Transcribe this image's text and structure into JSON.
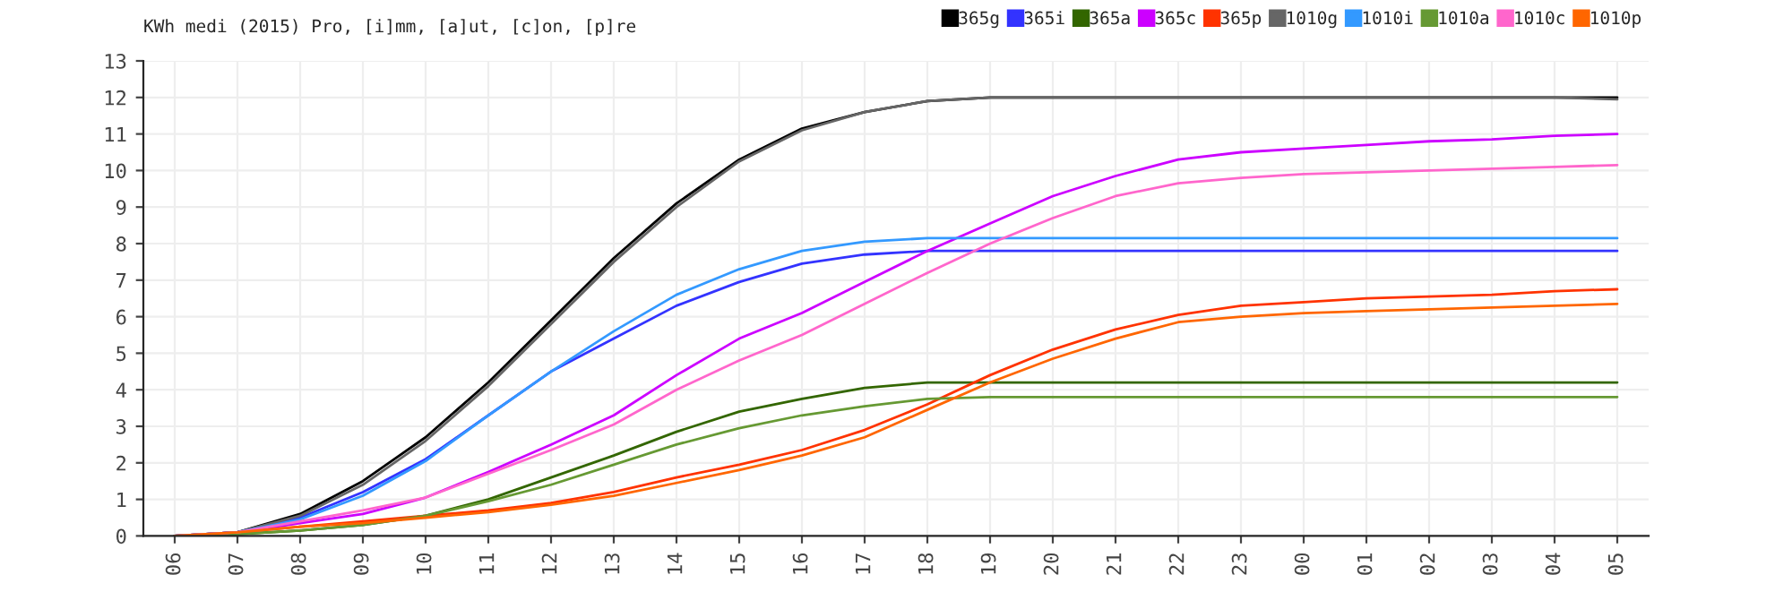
{
  "chart_data": {
    "type": "line",
    "title": "KWh medi (2015) Pro, [i]mm, [a]ut, [c]on, [p]re",
    "categories": [
      "06",
      "07",
      "08",
      "09",
      "10",
      "11",
      "12",
      "13",
      "14",
      "15",
      "16",
      "17",
      "18",
      "19",
      "20",
      "21",
      "22",
      "23",
      "00",
      "01",
      "02",
      "03",
      "04",
      "05"
    ],
    "series": [
      {
        "name": "365g",
        "color": "#000000",
        "values": [
          0,
          0.1,
          0.6,
          1.5,
          2.7,
          4.2,
          5.9,
          7.6,
          9.1,
          10.3,
          11.15,
          11.6,
          11.9,
          12.0,
          12.0,
          12.0,
          12.0,
          12.0,
          12.0,
          12.0,
          12.0,
          12.0,
          12.0,
          12.0
        ]
      },
      {
        "name": "365i",
        "color": "#3333ff",
        "values": [
          0,
          0.1,
          0.5,
          1.2,
          2.1,
          3.3,
          4.5,
          5.4,
          6.3,
          6.95,
          7.45,
          7.7,
          7.8,
          7.8,
          7.8,
          7.8,
          7.8,
          7.8,
          7.8,
          7.8,
          7.8,
          7.8,
          7.8,
          7.8
        ]
      },
      {
        "name": "365a",
        "color": "#336600",
        "values": [
          0,
          0.05,
          0.15,
          0.3,
          0.55,
          1.0,
          1.6,
          2.2,
          2.85,
          3.4,
          3.75,
          4.05,
          4.2,
          4.2,
          4.2,
          4.2,
          4.2,
          4.2,
          4.2,
          4.2,
          4.2,
          4.2,
          4.2,
          4.2
        ]
      },
      {
        "name": "365c",
        "color": "#cc00ff",
        "values": [
          0,
          0.1,
          0.35,
          0.6,
          1.05,
          1.75,
          2.5,
          3.3,
          4.4,
          5.4,
          6.1,
          6.95,
          7.8,
          8.55,
          9.3,
          9.85,
          10.3,
          10.5,
          10.6,
          10.7,
          10.8,
          10.85,
          10.95,
          11.0
        ]
      },
      {
        "name": "365p",
        "color": "#ff3300",
        "values": [
          0,
          0.1,
          0.25,
          0.4,
          0.55,
          0.7,
          0.9,
          1.2,
          1.6,
          1.95,
          2.35,
          2.9,
          3.6,
          4.4,
          5.1,
          5.65,
          6.05,
          6.3,
          6.4,
          6.5,
          6.55,
          6.6,
          6.7,
          6.75
        ]
      },
      {
        "name": "1010g",
        "color": "#666666",
        "values": [
          0,
          0.1,
          0.55,
          1.4,
          2.6,
          4.1,
          5.8,
          7.5,
          9.0,
          10.25,
          11.1,
          11.6,
          11.9,
          12.0,
          12.0,
          12.0,
          12.0,
          12.0,
          12.0,
          12.0,
          12.0,
          12.0,
          12.0,
          11.95
        ]
      },
      {
        "name": "1010i",
        "color": "#3399ff",
        "values": [
          0,
          0.1,
          0.45,
          1.1,
          2.05,
          3.3,
          4.5,
          5.6,
          6.6,
          7.3,
          7.8,
          8.05,
          8.15,
          8.15,
          8.15,
          8.15,
          8.15,
          8.15,
          8.15,
          8.15,
          8.15,
          8.15,
          8.15,
          8.15
        ]
      },
      {
        "name": "1010a",
        "color": "#669933",
        "values": [
          0,
          0.05,
          0.15,
          0.3,
          0.55,
          0.95,
          1.4,
          1.95,
          2.5,
          2.95,
          3.3,
          3.55,
          3.75,
          3.8,
          3.8,
          3.8,
          3.8,
          3.8,
          3.8,
          3.8,
          3.8,
          3.8,
          3.8,
          3.8
        ]
      },
      {
        "name": "1010c",
        "color": "#ff66cc",
        "values": [
          0,
          0.1,
          0.4,
          0.7,
          1.05,
          1.7,
          2.35,
          3.05,
          4.0,
          4.8,
          5.5,
          6.35,
          7.2,
          8.0,
          8.7,
          9.3,
          9.65,
          9.8,
          9.9,
          9.95,
          10.0,
          10.05,
          10.1,
          10.15
        ]
      },
      {
        "name": "1010p",
        "color": "#ff6600",
        "values": [
          0,
          0.1,
          0.25,
          0.35,
          0.5,
          0.65,
          0.85,
          1.1,
          1.45,
          1.8,
          2.2,
          2.7,
          3.45,
          4.2,
          4.85,
          5.4,
          5.85,
          6.0,
          6.1,
          6.15,
          6.2,
          6.25,
          6.3,
          6.35
        ]
      }
    ],
    "ylim": [
      0,
      13
    ],
    "yticks": [
      0,
      1,
      2,
      3,
      4,
      5,
      6,
      7,
      8,
      9,
      10,
      11,
      12,
      13
    ],
    "grid": true,
    "legend": "top right",
    "marker": "none",
    "line_style": "solid"
  }
}
